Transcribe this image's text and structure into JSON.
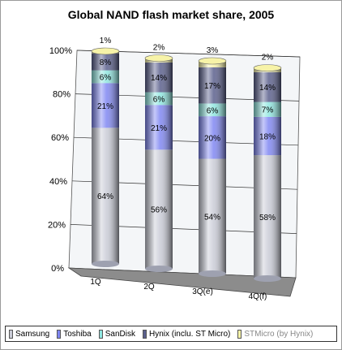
{
  "chart_data": {
    "type": "bar",
    "stacked": true,
    "percent": true,
    "three_d": true,
    "title": "Global NAND flash market share, 2005",
    "categories": [
      "1Q",
      "2Q",
      "3Q(e)",
      "4Q(f)"
    ],
    "yticks": [
      "0%",
      "20%",
      "40%",
      "60%",
      "80%",
      "100%"
    ],
    "ylim": [
      0,
      100
    ],
    "grid": true,
    "legend_position": "bottom",
    "series": [
      {
        "name": "Samsung",
        "values": [
          64,
          56,
          54,
          58
        ],
        "labels": [
          "64%",
          "56%",
          "54%",
          "58%"
        ],
        "color": "#c9cbd6"
      },
      {
        "name": "Toshiba",
        "values": [
          21,
          21,
          20,
          18
        ],
        "labels": [
          "21%",
          "21%",
          "20%",
          "18%"
        ],
        "color": "#7f86f2"
      },
      {
        "name": "SanDisk",
        "values": [
          6,
          6,
          6,
          7
        ],
        "labels": [
          "6%",
          "6%",
          "6%",
          "7%"
        ],
        "color": "#8fe6e0"
      },
      {
        "name": "Hynix (inclu. ST Micro)",
        "values": [
          8,
          14,
          17,
          14
        ],
        "labels": [
          "8%",
          "14%",
          "17%",
          "14%"
        ],
        "color": "#5a5f8c"
      },
      {
        "name": "STMicro (by Hynix)",
        "values": [
          1,
          2,
          3,
          2
        ],
        "labels": [
          "1%",
          "2%",
          "3%",
          "2%"
        ],
        "color": "#f7f3a8"
      }
    ]
  }
}
